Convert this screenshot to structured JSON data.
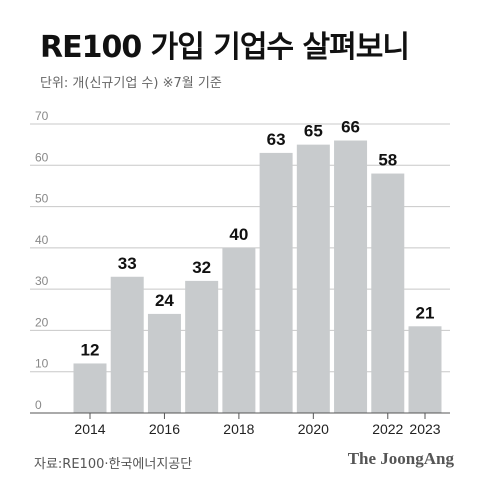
{
  "title": "RE100 가입 기업수 살펴보니",
  "unit_note": "단위: 개(신규기업 수)  ※7월 기준",
  "source": "자료:RE100·한국에너지공단",
  "brand": "The JoongAng",
  "colors": {
    "bar": "#c8cbcd",
    "gridline": "#c8c8c8",
    "axis": "#555555"
  },
  "chart_data": {
    "type": "bar",
    "title": "RE100 가입 기업수 살펴보니",
    "xlabel": "",
    "ylabel": "단위: 개(신규기업 수)",
    "categories": [
      "2014",
      "2015",
      "2016",
      "2017",
      "2018",
      "2019",
      "2020",
      "2021",
      "2022",
      "2023"
    ],
    "category_labels": [
      "2014",
      "",
      "2016",
      "",
      "2018",
      "",
      "2020",
      "",
      "2022",
      "2023"
    ],
    "values": [
      12,
      33,
      24,
      32,
      40,
      63,
      65,
      66,
      58,
      21
    ],
    "ylim": [
      0,
      70
    ],
    "yticks": [
      0,
      10,
      20,
      30,
      40,
      50,
      60,
      70
    ],
    "grid": true,
    "legend": "none"
  }
}
